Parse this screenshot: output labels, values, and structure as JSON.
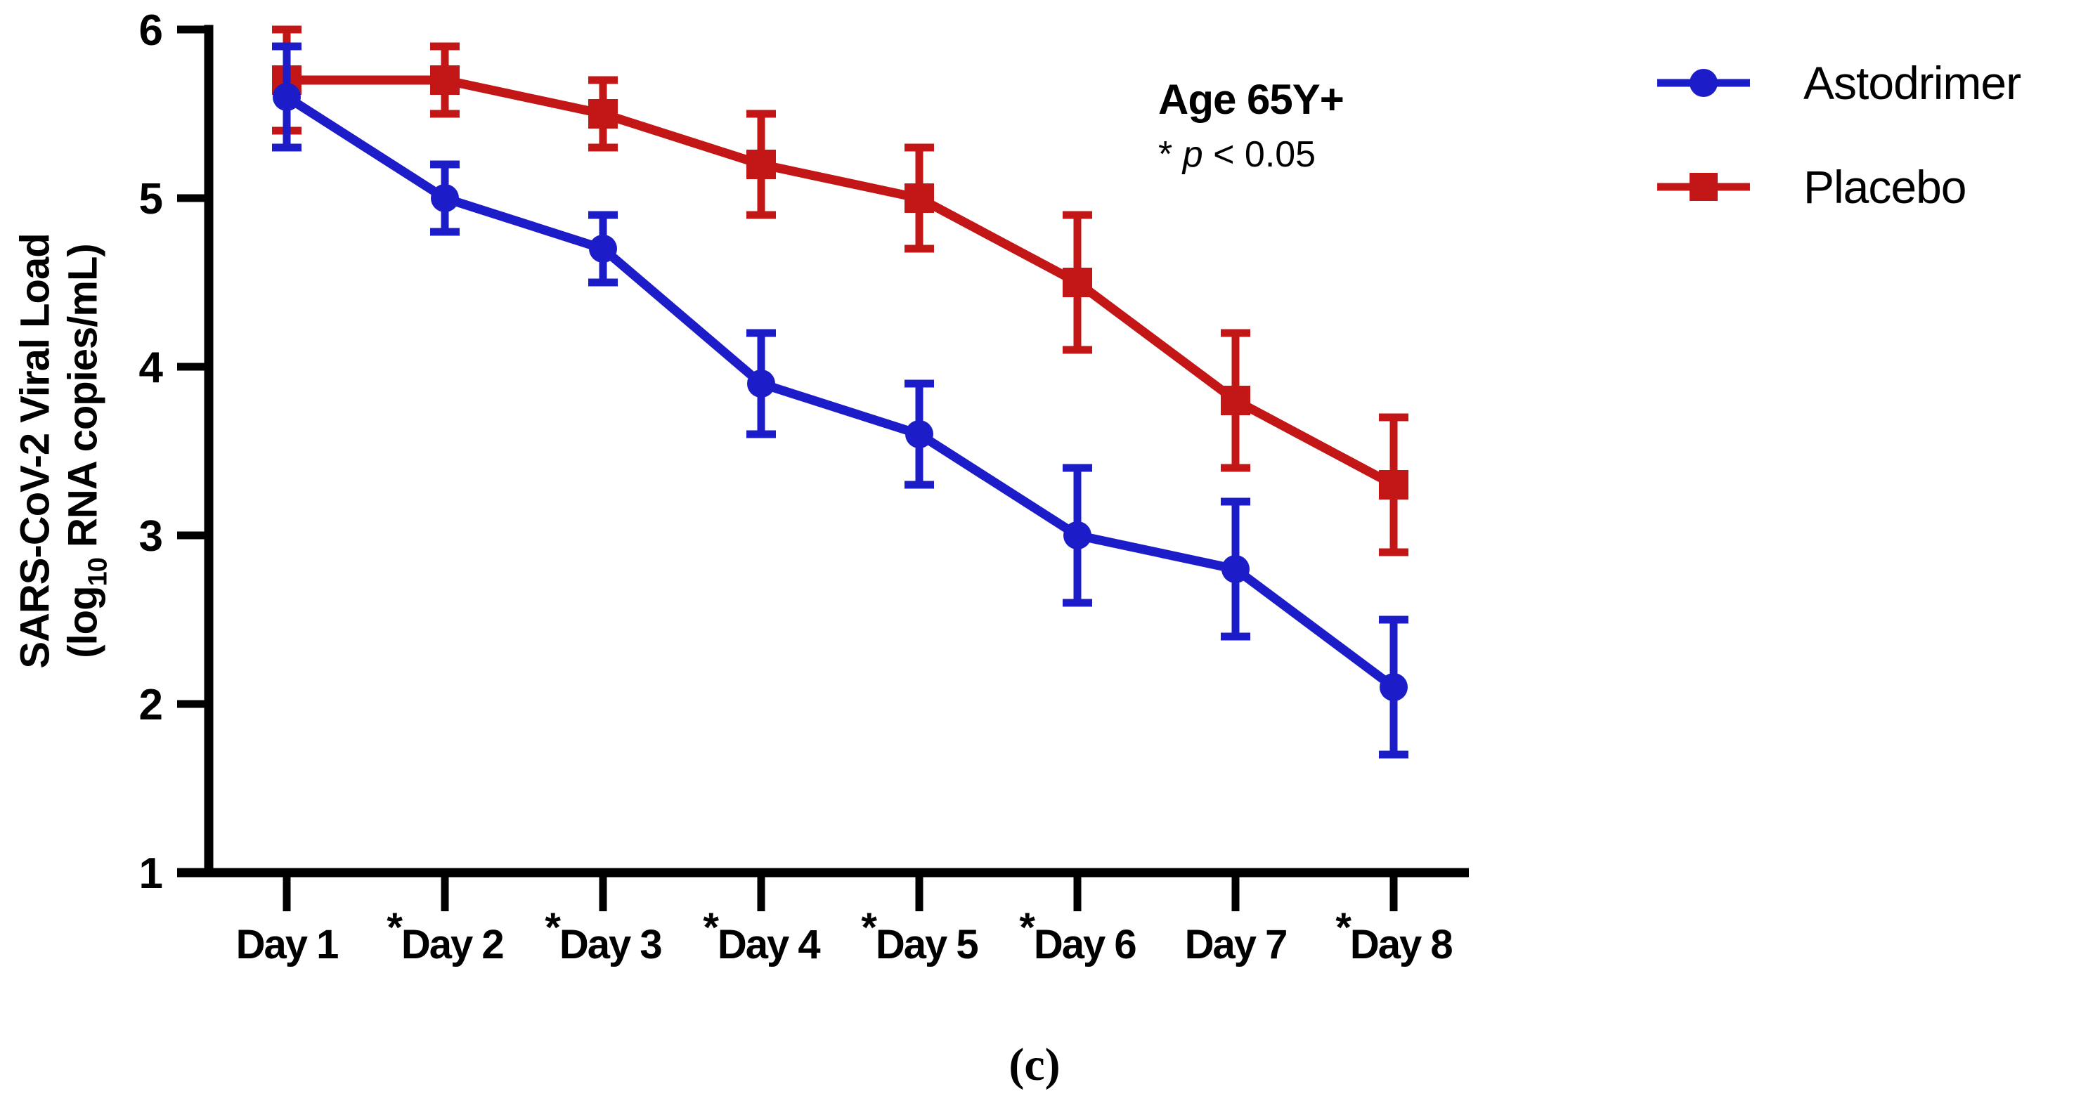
{
  "figure": {
    "caption": "(c)",
    "annotation": {
      "group": "Age 65Y+",
      "sig_star": "*",
      "sig_p": "p",
      "sig_rest": "< 0.05"
    }
  },
  "chart_data": {
    "type": "line",
    "title": "",
    "xlabel": "",
    "ylabel": "SARS-CoV-2 Viral Load (log10 RNA copies/mL)",
    "ylabel_parts": {
      "line1": "SARS-CoV-2 Viral Load",
      "line2_prefix": "(log",
      "line2_sub": "10",
      "line2_suffix": " RNA copies/mL)"
    },
    "categories": [
      "Day 1",
      "Day 2",
      "Day 3",
      "Day 4",
      "Day 5",
      "Day 6",
      "Day 7",
      "Day 8"
    ],
    "significant_days": [
      false,
      true,
      true,
      true,
      true,
      true,
      false,
      true
    ],
    "significance_marker": "*",
    "y_ticks": [
      1,
      2,
      3,
      4,
      5,
      6
    ],
    "ylim": [
      1,
      6
    ],
    "grid": false,
    "legend_position": "top-right",
    "error_bars": true,
    "series": [
      {
        "name": "Astodrimer",
        "color": "#1C1CC8",
        "marker": "circle",
        "values": [
          5.6,
          5.0,
          4.7,
          3.9,
          3.6,
          3.0,
          2.8,
          2.1
        ],
        "upper": [
          5.9,
          5.2,
          4.9,
          4.2,
          3.9,
          3.4,
          3.2,
          2.5
        ],
        "lower": [
          5.3,
          4.8,
          4.5,
          3.6,
          3.3,
          2.6,
          2.4,
          1.7
        ]
      },
      {
        "name": "Placebo",
        "color": "#C31616",
        "marker": "square",
        "values": [
          5.7,
          5.7,
          5.5,
          5.2,
          5.0,
          4.5,
          3.8,
          3.3
        ],
        "upper": [
          6.0,
          5.9,
          5.7,
          5.5,
          5.3,
          4.9,
          4.2,
          3.7
        ],
        "lower": [
          5.4,
          5.5,
          5.3,
          4.9,
          4.7,
          4.1,
          3.4,
          2.9
        ]
      }
    ]
  }
}
